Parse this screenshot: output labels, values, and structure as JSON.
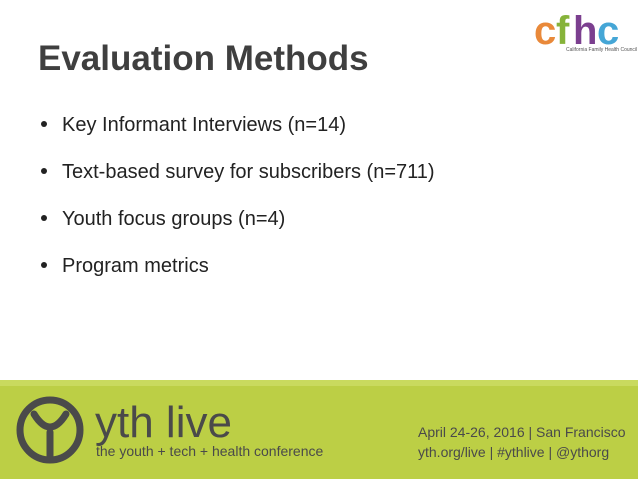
{
  "title": "Evaluation Methods",
  "bullets": [
    "Key Informant Interviews (n=14)",
    "Text-based survey for subscribers (n=711)",
    "Youth focus groups (n=4)",
    "Program metrics"
  ],
  "logo": {
    "letters": [
      "c",
      "f",
      "h",
      "c"
    ],
    "caption": "California Family Health Council"
  },
  "footer": {
    "brand": "yth live",
    "tagline": "the youth + tech + health conference",
    "event": "April 24-26, 2016 | San Francisco",
    "links": "yth.org/live | #ythlive | @ythorg"
  }
}
